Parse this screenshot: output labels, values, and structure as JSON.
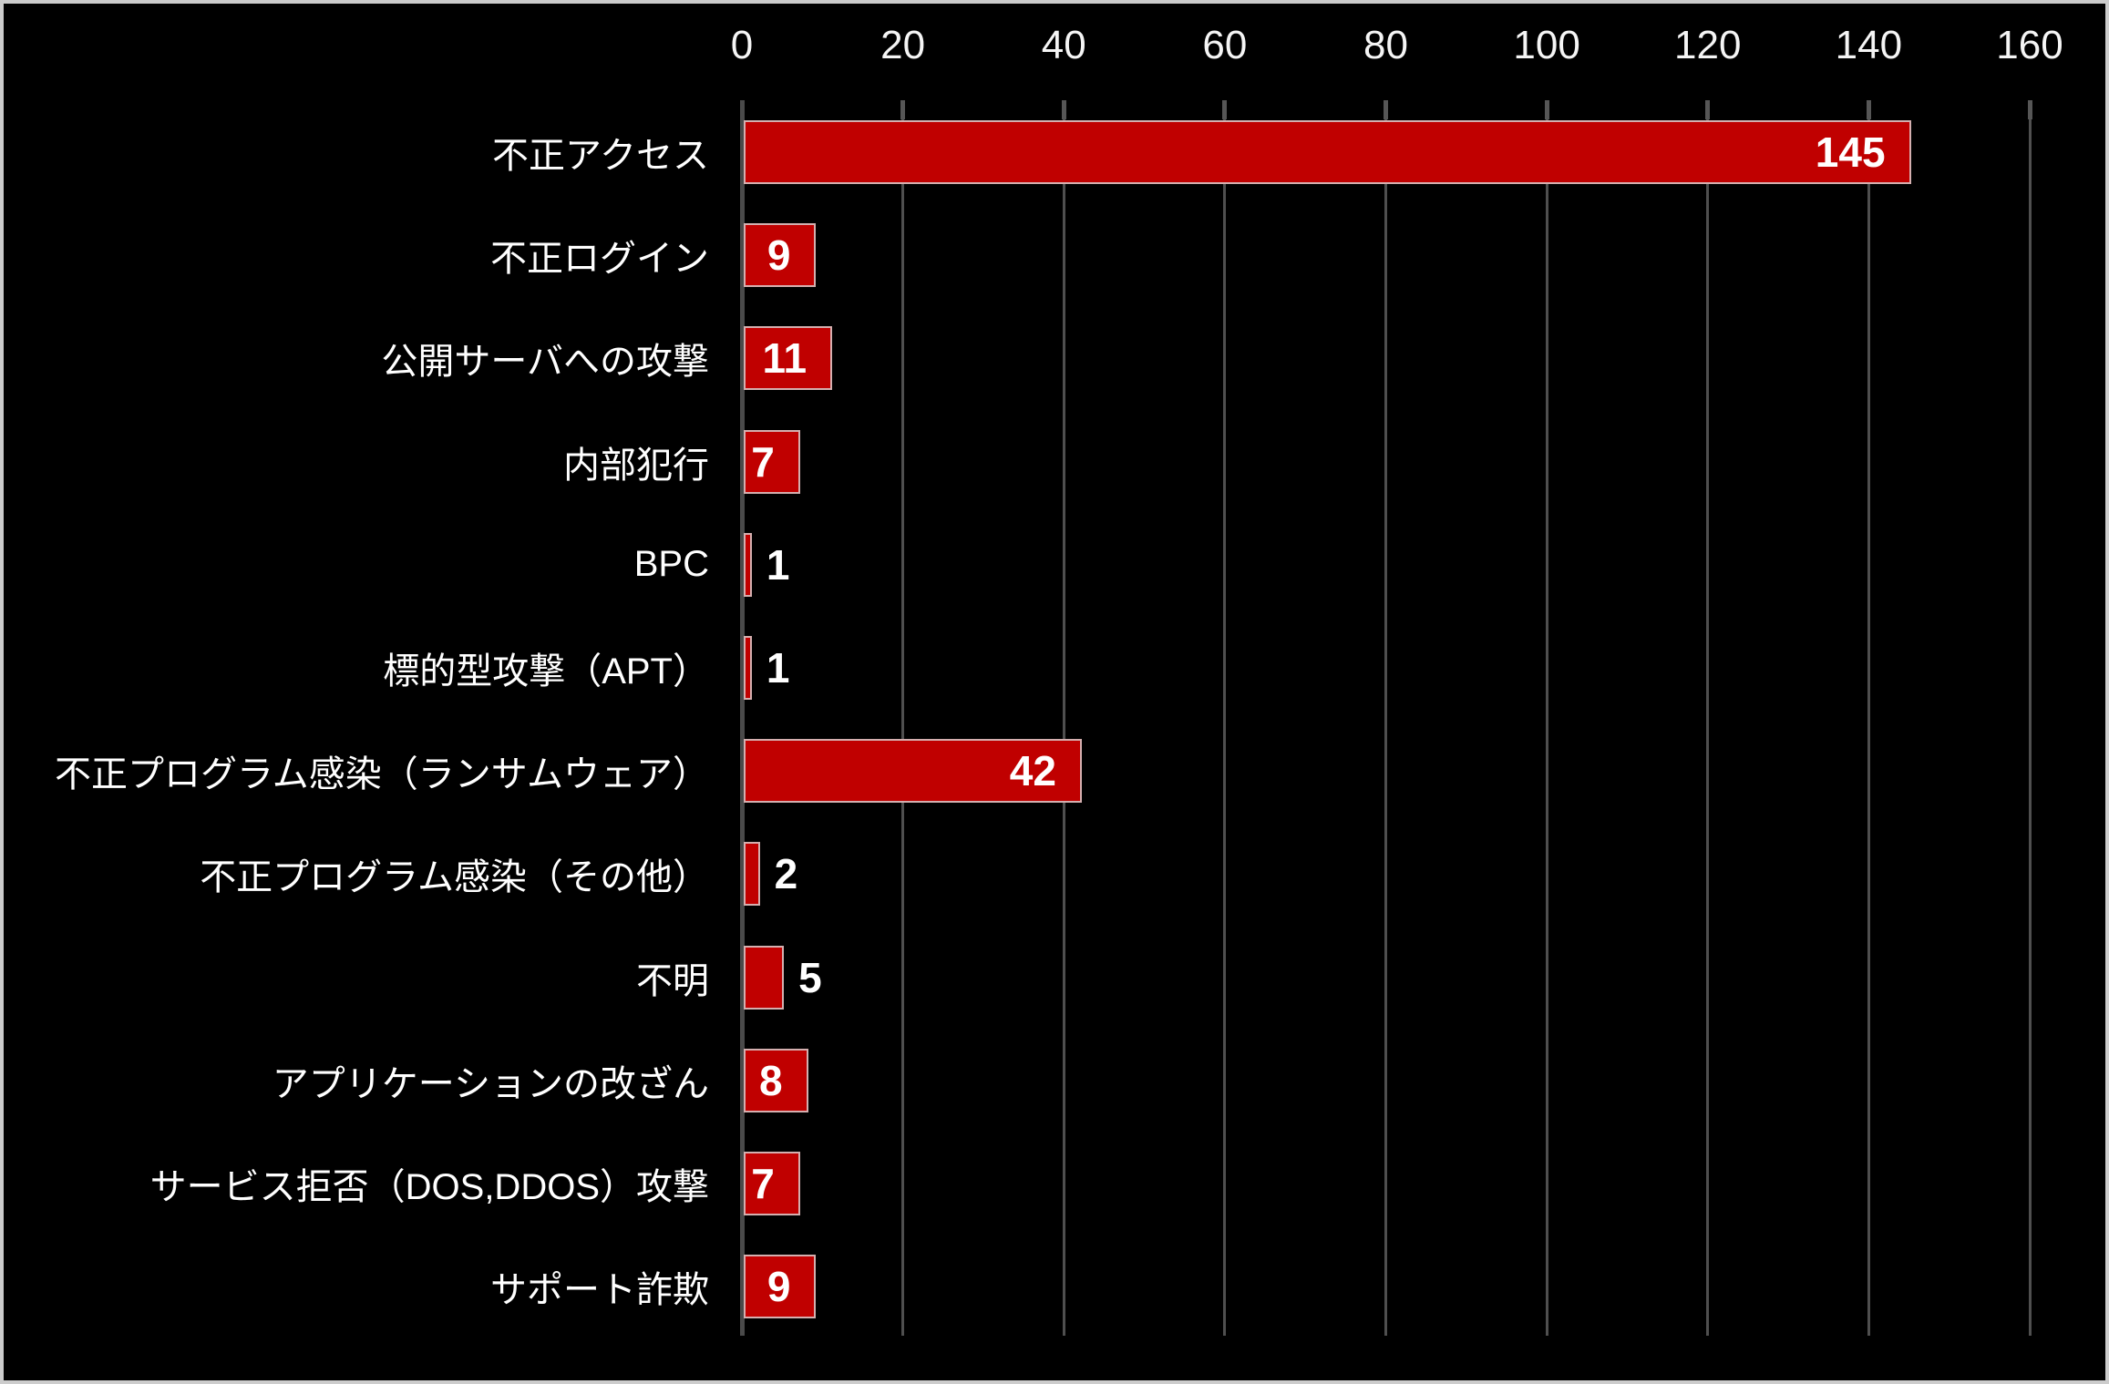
{
  "chart_data": {
    "type": "bar",
    "orientation": "horizontal",
    "title": "",
    "legend": "none",
    "grid": true,
    "xlabel": "",
    "ylabel": "",
    "xlim": [
      0,
      160
    ],
    "x_ticks": [
      0,
      20,
      40,
      60,
      80,
      100,
      120,
      140,
      160
    ],
    "x_tick_labels": [
      "0",
      "20",
      "40",
      "60",
      "80",
      "100",
      "120",
      "140",
      "160"
    ],
    "categories": [
      "不正アクセス",
      "不正ログイン",
      "公開サーバへの攻撃",
      "内部犯行",
      "BPC",
      "標的型攻撃（APT）",
      "不正プログラム感染（ランサムウェア）",
      "不正プログラム感染（その他）",
      "不明",
      "アプリケーションの改ざん",
      "サービス拒否（DOS,DDOS）攻撃",
      "サポート詐欺"
    ],
    "values": [
      145,
      9,
      11,
      7,
      1,
      1,
      42,
      2,
      5,
      8,
      7,
      9
    ],
    "value_labels": [
      "145",
      "9",
      "11",
      "7",
      "1",
      "1",
      "42",
      "2",
      "5",
      "8",
      "7",
      "9"
    ],
    "colors": {
      "background": "#000000",
      "frame_border": "#cccccc",
      "bar_fill": "#c00000",
      "bar_border": "rgba(215,206,206,0.85)",
      "gridline": "#4f4f4f",
      "axis_line": "#4a4a4a",
      "tick_mark": "#565656",
      "tick_label_text": "#f5f5f5",
      "category_label_text": "#ffffff",
      "value_label_text": "#ffffff"
    }
  }
}
